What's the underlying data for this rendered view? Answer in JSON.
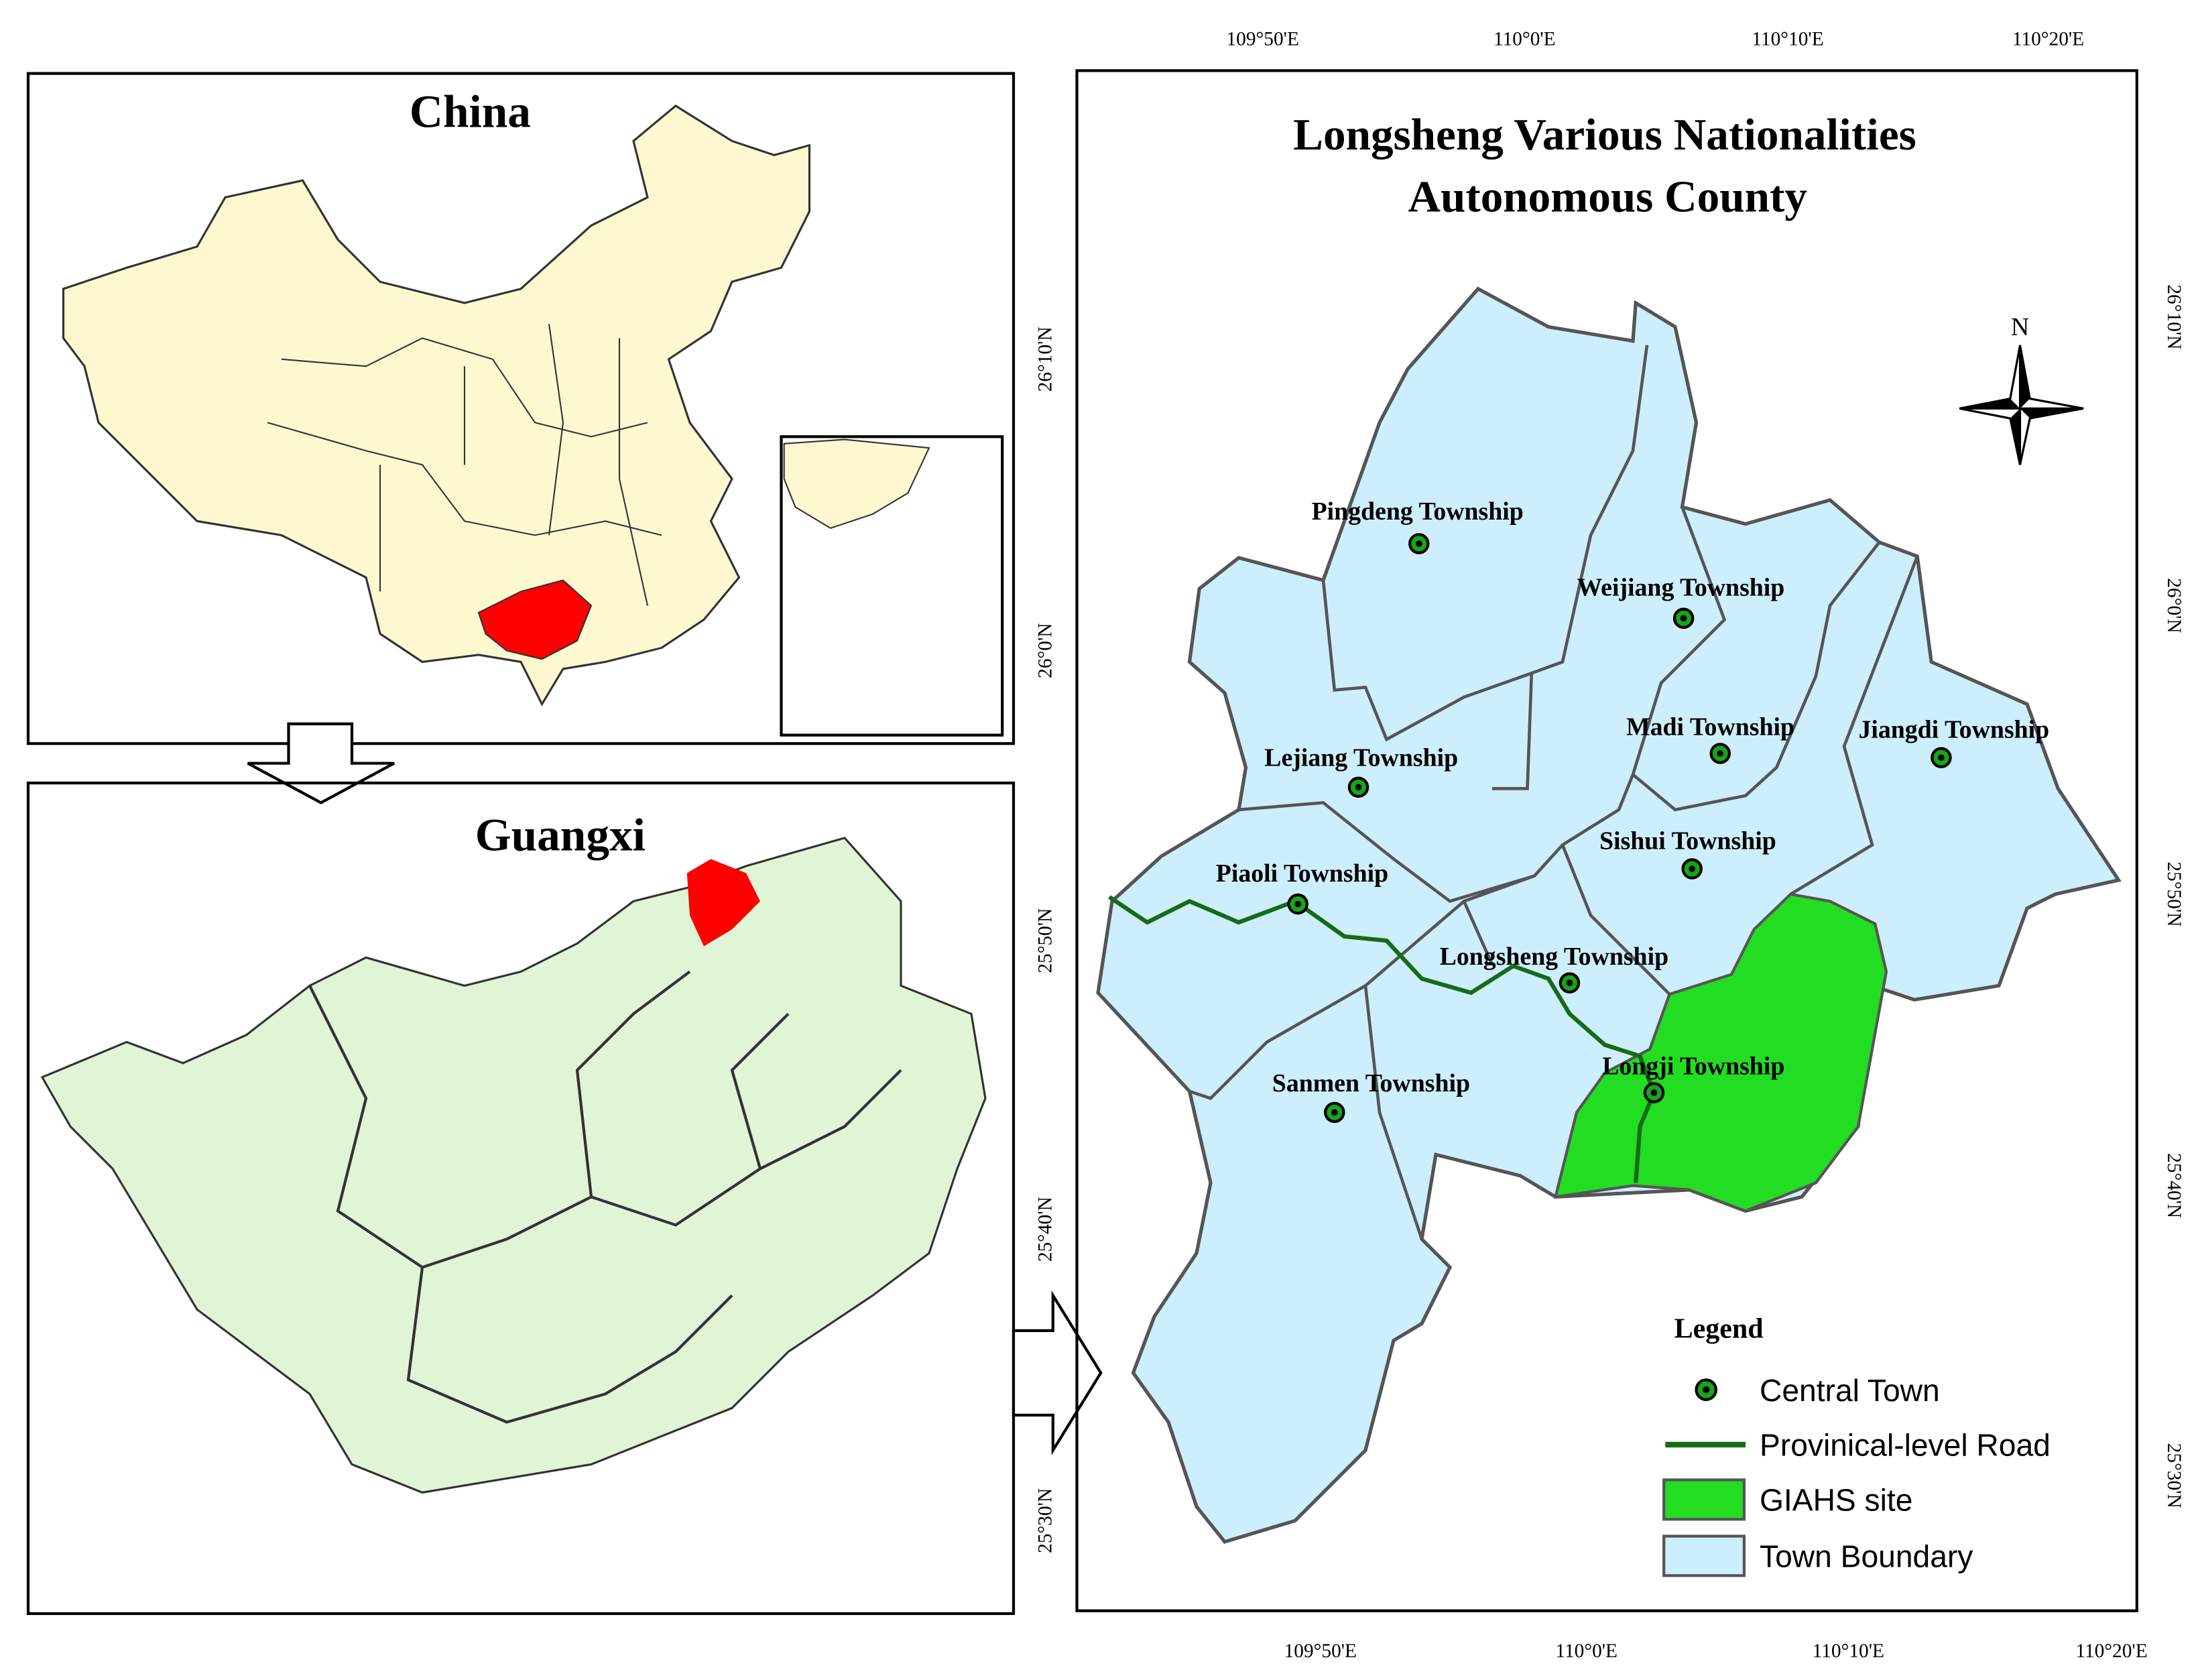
{
  "china_panel": {
    "title": "China"
  },
  "guangxi_panel": {
    "title": "Guangxi"
  },
  "county_map": {
    "title_lines": [
      "Longsheng Various Nationalities",
      "Autonomous County"
    ],
    "top_axis_labels": [
      "109°50'E",
      "110°0'E",
      "110°10'E",
      "110°20'E"
    ],
    "bottom_axis_labels": [
      "109°50'E",
      "110°0'E",
      "110°10'E",
      "110°20'E"
    ],
    "left_axis_labels": [
      "26°10'N",
      "26°0'N",
      "25°50'N",
      "25°40'N",
      "25°30'N"
    ],
    "right_axis_labels": [
      "26°10'N",
      "26°0'N",
      "25°50'N",
      "25°40'N",
      "25°30'N"
    ],
    "north_label": "N",
    "townships": [
      {
        "label": "Pingdeng Township"
      },
      {
        "label": "Weijiang Township"
      },
      {
        "label": "Madi Township"
      },
      {
        "label": "Jiangdi Township"
      },
      {
        "label": "Lejiang Township"
      },
      {
        "label": "Sishui Township"
      },
      {
        "label": "Piaoli Township"
      },
      {
        "label": "Longsheng Township"
      },
      {
        "label": "Longji Township"
      },
      {
        "label": "Sanmen Township"
      }
    ],
    "legend": {
      "title": "Legend",
      "items": [
        "Central Town",
        "Provinical-level Road",
        "GIAHS site",
        "Town Boundary"
      ]
    }
  }
}
